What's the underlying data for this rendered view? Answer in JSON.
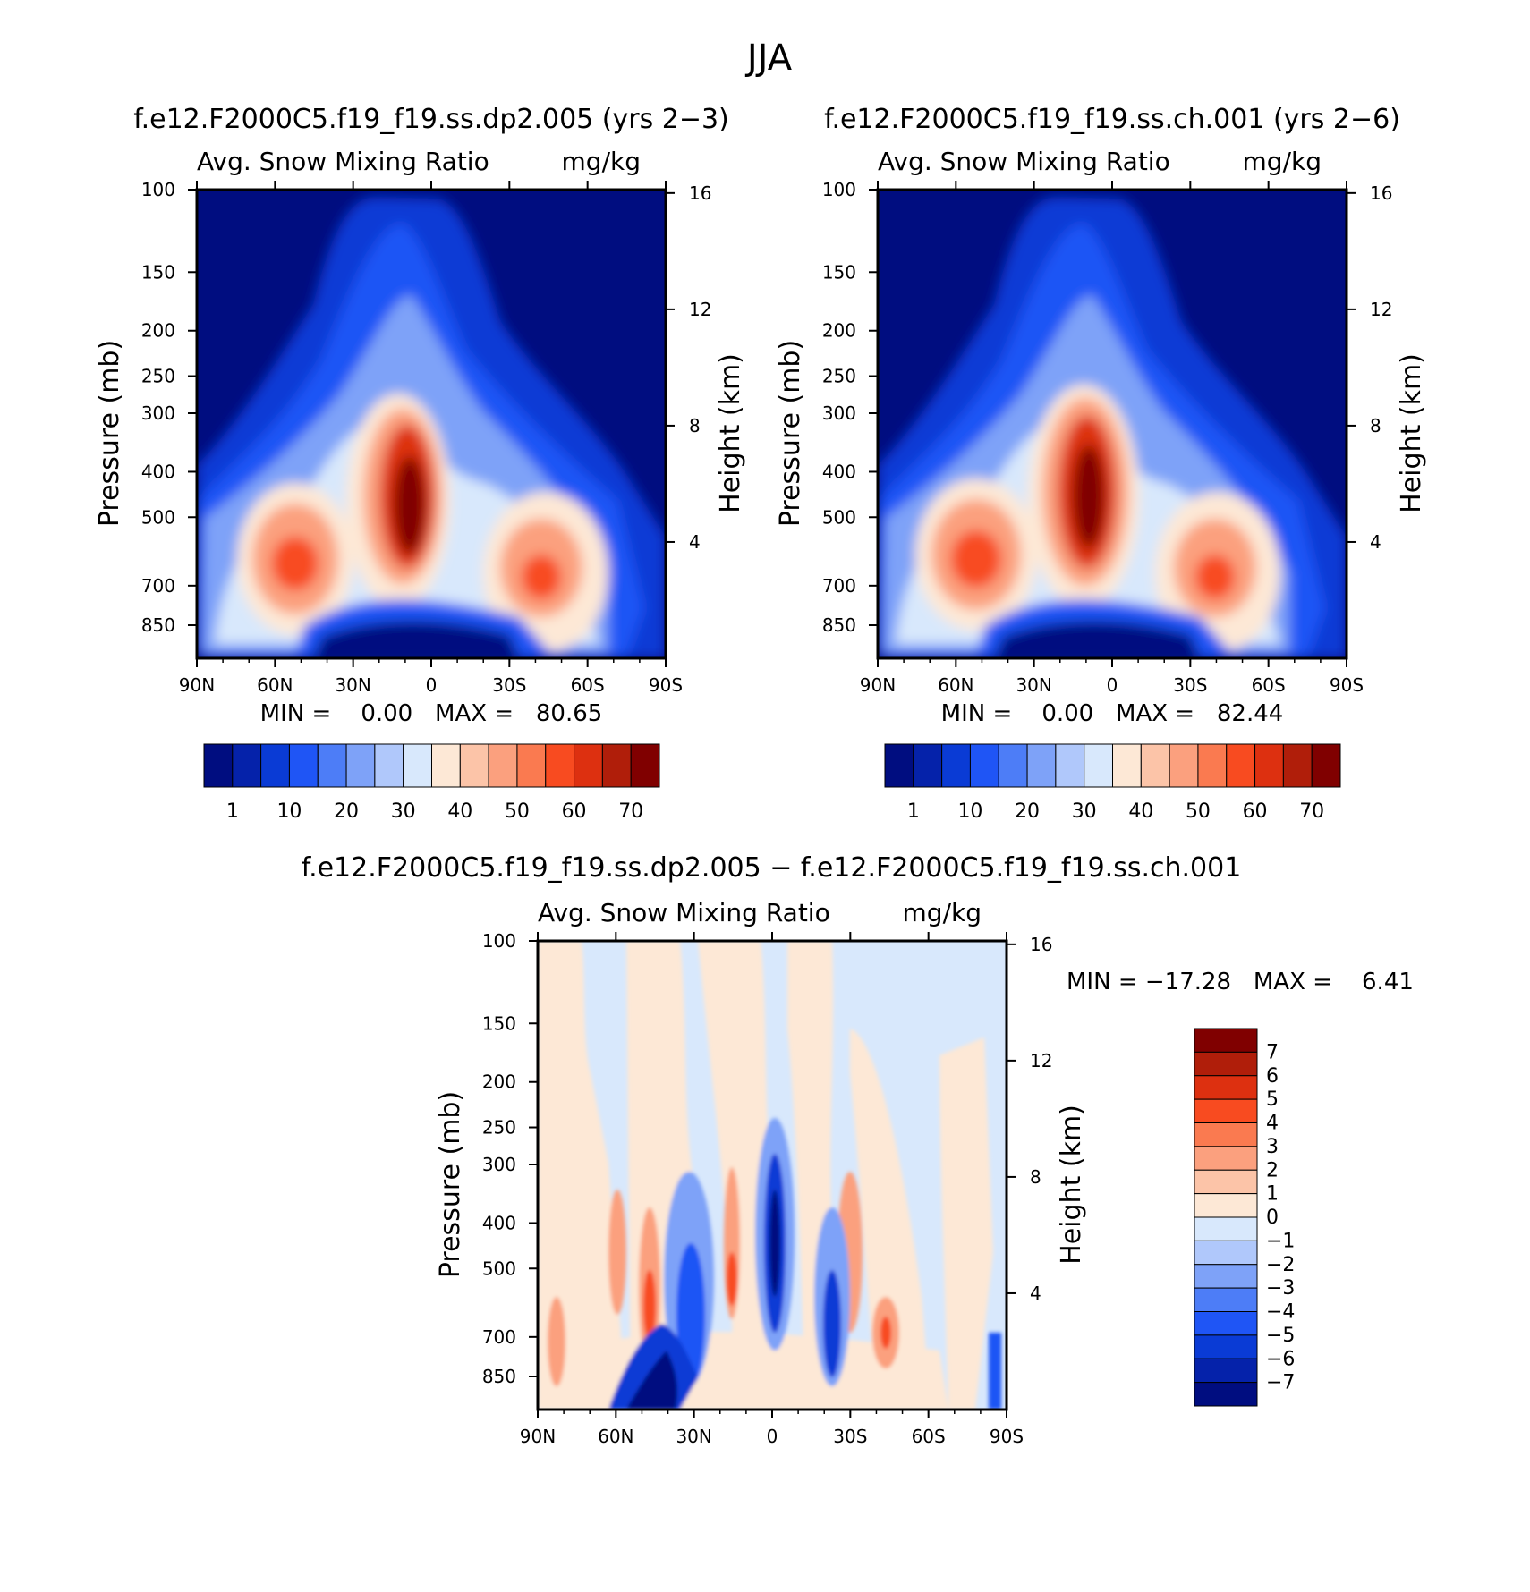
{
  "figure_title": "JJA",
  "colors": {
    "abs_levels": [
      "#000d80",
      "#0522aa",
      "#0a3bd5",
      "#1f55f5",
      "#4d7df7",
      "#7ea2f8",
      "#b0c8fb",
      "#d8e8fc",
      "#fde8d6",
      "#fcc4a8",
      "#fba07e",
      "#fa7a50",
      "#f84b20",
      "#dd3010",
      "#b01e0a",
      "#800000"
    ],
    "diff_levels": [
      "#000d80",
      "#0522aa",
      "#0a3bd5",
      "#1f55f5",
      "#4d7df7",
      "#7ea2f8",
      "#b0c8fb",
      "#d8e8fc",
      "#fde8d6",
      "#fcc4a8",
      "#fba07e",
      "#fa7a50",
      "#f84b20",
      "#dd3010",
      "#b01e0a",
      "#800000"
    ]
  },
  "chart_data": [
    {
      "type": "heatmap",
      "title": "f.e12.F2000C5.f19_f19.ss.dp2.005 (yrs 2−3)",
      "left_string": "Avg. Snow Mixing Ratio",
      "right_string": "mg/kg",
      "ylabel": "Pressure (mb)",
      "ylabel_right": "Height (km)",
      "x_ticks": [
        "90N",
        "60N",
        "30N",
        "0",
        "30S",
        "60S",
        "90S"
      ],
      "y_ticks": [
        "100",
        "150",
        "200",
        "250",
        "300",
        "400",
        "500",
        "700",
        "850"
      ],
      "y_right_ticks": [
        "16",
        "12",
        "8",
        "4"
      ],
      "min_max_text": "MIN =    0.00   MAX =   80.65",
      "colorbar_labels": [
        "1",
        "10",
        "20",
        "30",
        "40",
        "50",
        "60",
        "70"
      ],
      "ylim": [
        100,
        1000
      ],
      "xlim": [
        "90N",
        "90S"
      ],
      "maxima": [
        {
          "lat": "15N",
          "p": 500,
          "value": 80.65
        },
        {
          "lat": "60N",
          "p": 620,
          "value": 55
        },
        {
          "lat": "40S",
          "p": 620,
          "value": 55
        }
      ]
    },
    {
      "type": "heatmap",
      "title": "f.e12.F2000C5.f19_f19.ss.ch.001 (yrs 2−6)",
      "left_string": "Avg. Snow Mixing Ratio",
      "right_string": "mg/kg",
      "ylabel": "Pressure (mb)",
      "ylabel_right": "Height (km)",
      "x_ticks": [
        "90N",
        "60N",
        "30N",
        "0",
        "30S",
        "60S",
        "90S"
      ],
      "y_ticks": [
        "100",
        "150",
        "200",
        "250",
        "300",
        "400",
        "500",
        "700",
        "850"
      ],
      "y_right_ticks": [
        "16",
        "12",
        "8",
        "4"
      ],
      "min_max_text": "MIN =    0.00   MAX =   82.44",
      "colorbar_labels": [
        "1",
        "10",
        "20",
        "30",
        "40",
        "50",
        "60",
        "70"
      ],
      "ylim": [
        100,
        1000
      ],
      "xlim": [
        "90N",
        "90S"
      ],
      "maxima": [
        {
          "lat": "12N",
          "p": 480,
          "value": 82.44
        },
        {
          "lat": "60N",
          "p": 600,
          "value": 55
        },
        {
          "lat": "40S",
          "p": 620,
          "value": 50
        }
      ]
    },
    {
      "type": "heatmap",
      "title": "f.e12.F2000C5.f19_f19.ss.dp2.005 − f.e12.F2000C5.f19_f19.ss.ch.001",
      "left_string": "Avg. Snow Mixing Ratio",
      "right_string": "mg/kg",
      "ylabel": "Pressure (mb)",
      "ylabel_right": "Height (km)",
      "x_ticks": [
        "90N",
        "60N",
        "30N",
        "0",
        "30S",
        "60S",
        "90S"
      ],
      "y_ticks": [
        "100",
        "150",
        "200",
        "250",
        "300",
        "400",
        "500",
        "700",
        "850"
      ],
      "y_right_ticks": [
        "16",
        "12",
        "8",
        "4"
      ],
      "min_max_text": "MIN = −17.28   MAX =    6.41",
      "colorbar_labels": [
        "7",
        "6",
        "5",
        "4",
        "3",
        "2",
        "1",
        "0",
        "−1",
        "−2",
        "−3",
        "−4",
        "−5",
        "−6",
        "−7"
      ],
      "ylim": [
        100,
        1000
      ],
      "xlim": [
        "90N",
        "90S"
      ]
    }
  ]
}
